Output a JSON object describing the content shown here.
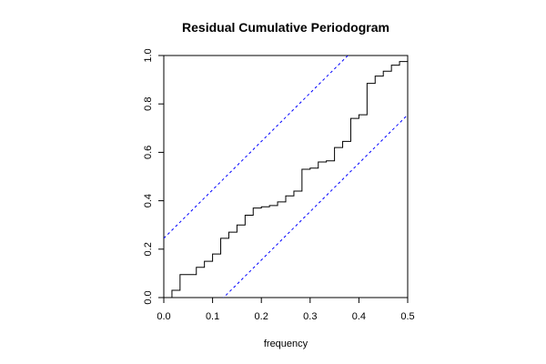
{
  "chart_data": {
    "type": "line",
    "title": "Residual Cumulative Periodogram",
    "xlabel": "frequency",
    "ylabel": "",
    "xlim": [
      0,
      0.5
    ],
    "ylim": [
      0,
      1
    ],
    "x_ticks": [
      "0.0",
      "0.1",
      "0.2",
      "0.3",
      "0.4",
      "0.5"
    ],
    "y_ticks": [
      "0.0",
      "0.2",
      "0.4",
      "0.6",
      "0.8",
      "1.0"
    ],
    "grid": false,
    "series": [
      {
        "style": "step",
        "color": "#000000",
        "x": [
          0.0,
          0.0167,
          0.0333,
          0.05,
          0.0667,
          0.0833,
          0.1,
          0.1167,
          0.1333,
          0.15,
          0.1667,
          0.1833,
          0.2,
          0.2167,
          0.2333,
          0.25,
          0.2667,
          0.2833,
          0.3,
          0.3167,
          0.3333,
          0.35,
          0.3667,
          0.3833,
          0.4,
          0.4167,
          0.4333,
          0.45,
          0.4667,
          0.4833,
          0.5
        ],
        "y": [
          0.0,
          0.03,
          0.095,
          0.095,
          0.125,
          0.15,
          0.18,
          0.245,
          0.27,
          0.3,
          0.34,
          0.37,
          0.375,
          0.38,
          0.395,
          0.42,
          0.44,
          0.53,
          0.535,
          0.56,
          0.565,
          0.62,
          0.645,
          0.74,
          0.755,
          0.885,
          0.915,
          0.935,
          0.96,
          0.975,
          0.99
        ]
      },
      {
        "style": "dashed",
        "color": "#0000ff",
        "x": [
          0.0,
          0.5
        ],
        "y": [
          0.245,
          1.245
        ]
      },
      {
        "style": "dashed",
        "color": "#0000ff",
        "x": [
          0.0,
          0.5
        ],
        "y": [
          -0.245,
          0.755
        ]
      }
    ]
  }
}
